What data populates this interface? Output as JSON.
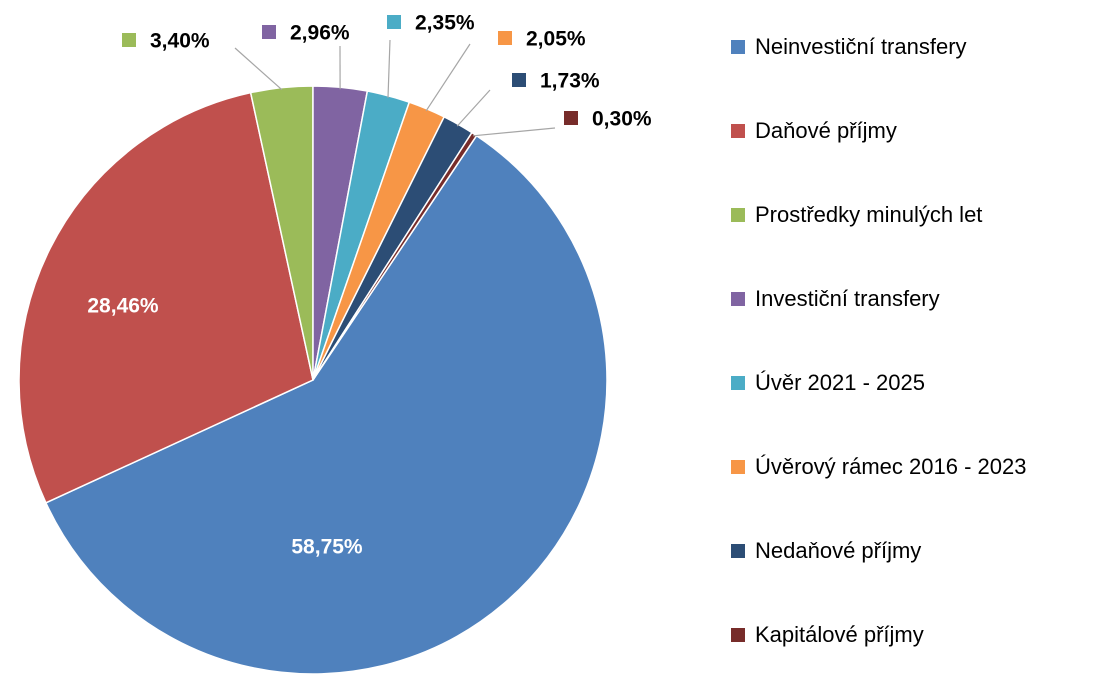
{
  "chart_data": {
    "type": "pie",
    "categories": [
      "Neinvestiční transfery",
      "Daňové příjmy",
      "Prostředky minulých let",
      "Investiční transfery",
      "Úvěr 2021 - 2025",
      "Úvěrový rámec 2016 - 2023",
      "Nedaňové příjmy",
      "Kapitálové příjmy"
    ],
    "values": [
      58.75,
      28.46,
      3.4,
      2.96,
      2.35,
      2.05,
      1.73,
      0.3
    ],
    "value_labels": [
      "58,75%",
      "28,46%",
      "3,40%",
      "2,96%",
      "2,35%",
      "2,05%",
      "1,73%",
      "0,30%"
    ],
    "colors": [
      "#4f81bd",
      "#c0504d",
      "#9bbb59",
      "#8064a2",
      "#4bacc6",
      "#f79646",
      "#2c4d75",
      "#772c2a"
    ],
    "legend": "right"
  }
}
